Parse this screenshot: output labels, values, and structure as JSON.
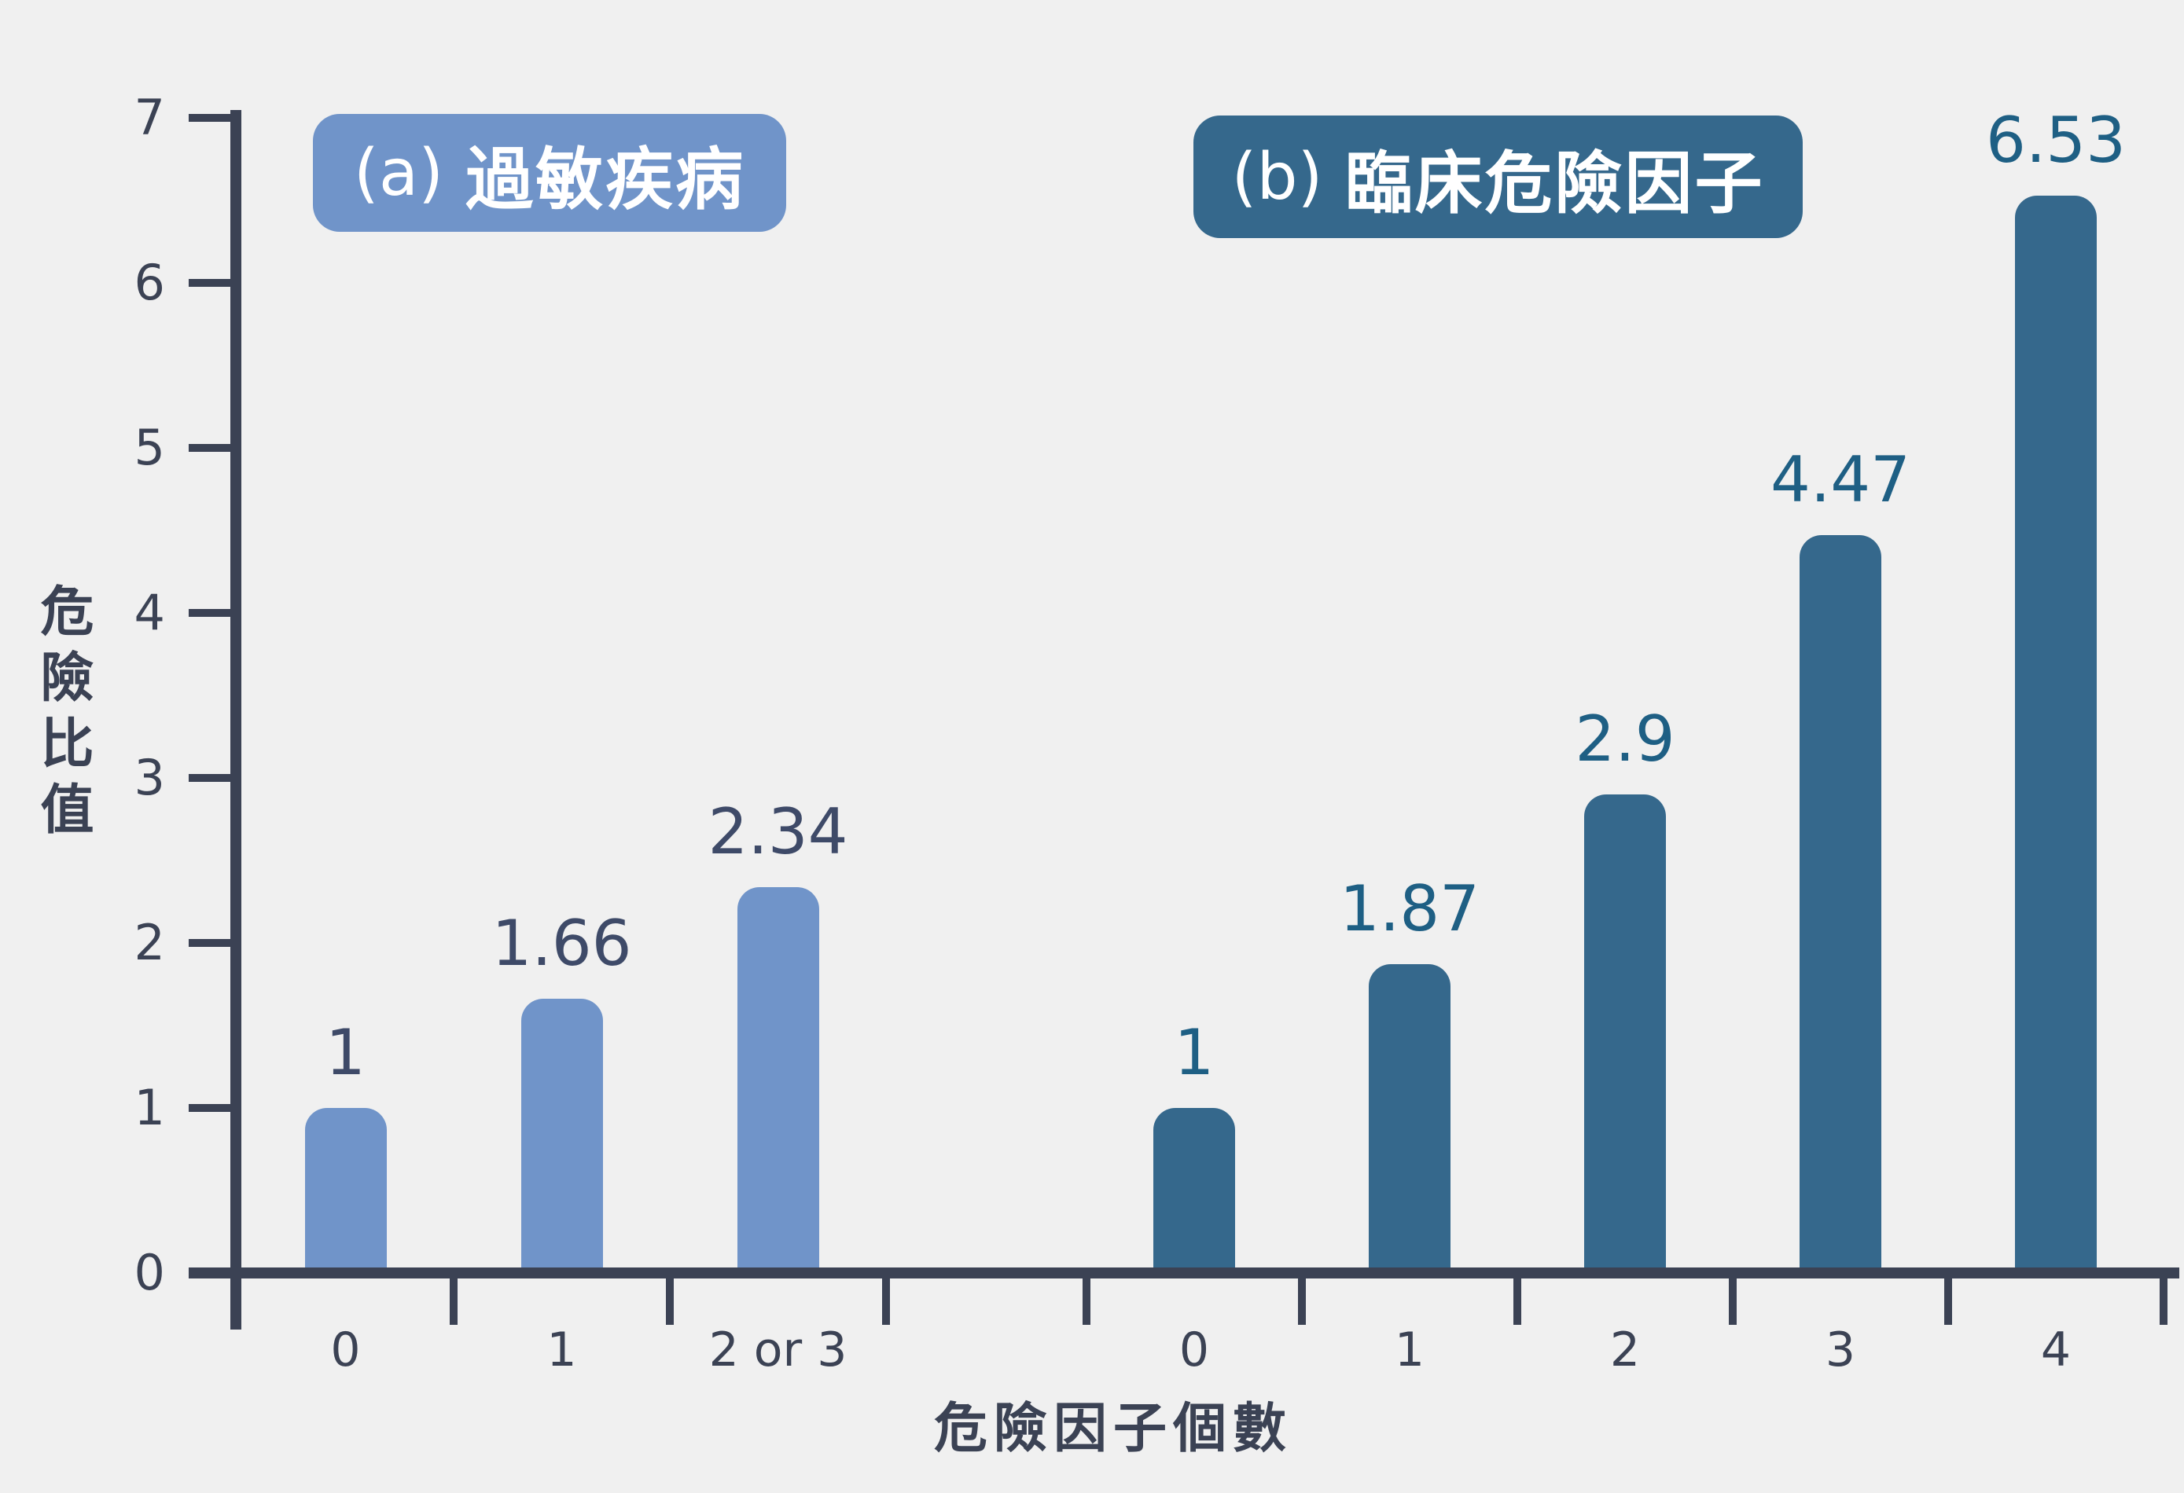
{
  "chart_data": {
    "type": "bar",
    "title": "",
    "ylabel": "危險比值",
    "xlabel": "危險因子個數",
    "ylim": [
      0,
      7
    ],
    "yticks": [
      0,
      1,
      2,
      3,
      4,
      5,
      6,
      7
    ],
    "grid": false,
    "legend_position": "none",
    "background_color": "#f0f0f0",
    "axis_color": "#3b4254",
    "groups": [
      {
        "prefix": "(a)",
        "title": "過敏疾病",
        "badge_color": "#7094c9",
        "bar_color": "#7094c9",
        "value_color": "#3e4a68",
        "categories": [
          "0",
          "1",
          "2 or 3"
        ],
        "values": [
          1,
          1.66,
          2.34
        ],
        "value_labels": [
          "1",
          "1.66",
          "2.34"
        ]
      },
      {
        "prefix": "(b)",
        "title": "臨床危險因子",
        "badge_color": "#35688c",
        "bar_color": "#35688c",
        "value_color": "#1e5f84",
        "categories": [
          "0",
          "1",
          "2",
          "3",
          "4"
        ],
        "values": [
          1,
          1.87,
          2.9,
          4.47,
          6.53
        ],
        "value_labels": [
          "1",
          "1.87",
          "2.9",
          "4.47",
          "6.53"
        ]
      }
    ]
  }
}
